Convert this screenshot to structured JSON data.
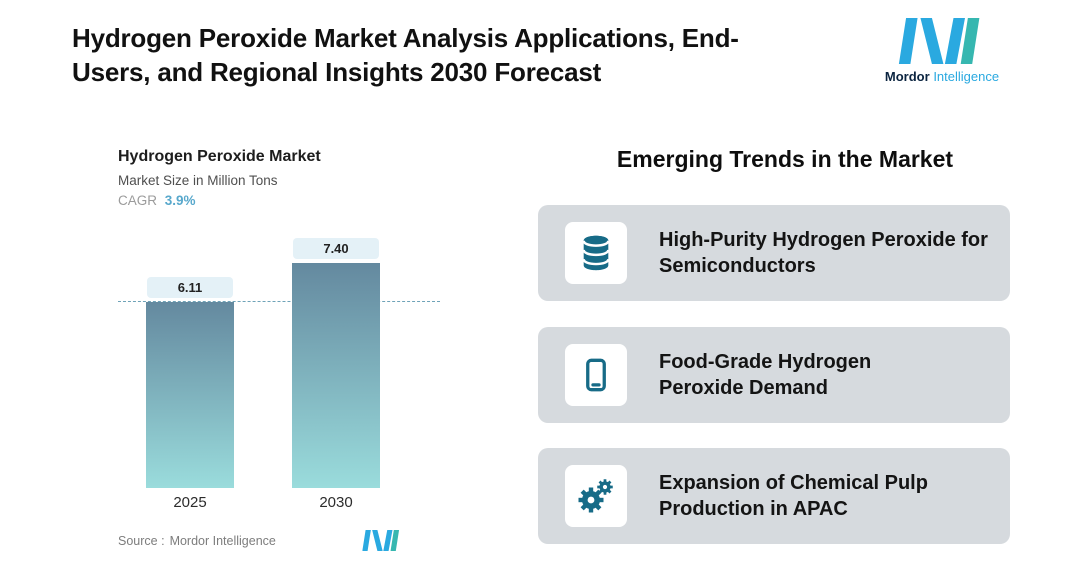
{
  "header": {
    "title_lines": [
      "Hydrogen Peroxide Market Analysis Applications, End-",
      "Users, and Regional Insights 2030 Forecast"
    ],
    "logo": {
      "brand_bold": "Mordor",
      "brand_light": "Intelligence"
    }
  },
  "chart": {
    "title": "Hydrogen Peroxide Market",
    "subtitle": "Market Size in Million Tons",
    "cagr_label": "CAGR",
    "cagr_value": "3.9%",
    "source_label": "Source :",
    "source_value": "Mordor Intelligence"
  },
  "chart_data": {
    "type": "bar",
    "title": "Hydrogen Peroxide Market",
    "ylabel": "Market Size in Million Tons",
    "cagr": "3.9%",
    "categories": [
      "2025",
      "2030"
    ],
    "values": [
      6.11,
      7.4
    ],
    "value_labels": [
      "6.11",
      "7.40"
    ],
    "reference_value": 6.11,
    "ylim": [
      0,
      7.4
    ],
    "grid": false,
    "legend": "none",
    "bar_gradient_top": "#64899f",
    "bar_gradient_bottom": "#9adcdc"
  },
  "trends": {
    "heading": "Emerging Trends in the Market",
    "items": [
      {
        "icon": "database-icon",
        "text": "High-Purity Hydrogen Peroxide for Semiconductors"
      },
      {
        "icon": "smartphone-icon",
        "text": "Food-Grade Hydrogen Peroxide Demand"
      },
      {
        "icon": "gears-icon",
        "text": "Expansion of Chemical Pulp Production in APAC"
      }
    ]
  },
  "colors": {
    "logo_blue": "#2aa9e0",
    "logo_teal": "#36b7b0",
    "icon_teal": "#176b87",
    "cagr_blue": "#58a8cc",
    "card_bg": "#d6dade",
    "dashed_line": "#6fa3b8"
  }
}
